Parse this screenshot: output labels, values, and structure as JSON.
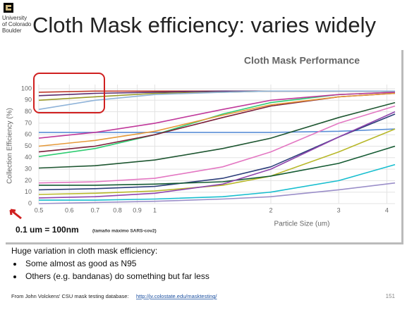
{
  "title": "Cloth Mask efficiency: varies widely",
  "logo": {
    "lines": [
      "University",
      "of Colorado",
      "Boulder"
    ]
  },
  "annotation": {
    "main": "0.1 um = 100nm",
    "note": "(tamaño máximo SARS-cov2)"
  },
  "body": {
    "heading": "Huge variation in cloth mask efficiency:",
    "bullets": [
      "Some almost as good as N95",
      "Others (e.g. bandanas) do something but far less"
    ]
  },
  "footer": {
    "text": "From John Volckens' CSU mask testing database:",
    "link": "http://jv.colostate.edu/masktesting/",
    "page": "151"
  },
  "chart_data": {
    "type": "line",
    "title": "Cloth Mask Performance",
    "x_label": "Particle Size (um)",
    "y_label": "Collection Efficiency (%)",
    "x_scale": "log",
    "grid": true,
    "xlim": [
      0.5,
      4.2
    ],
    "ylim": [
      0,
      100
    ],
    "xticks": [
      0.5,
      0.6,
      0.7,
      0.8,
      0.9,
      1,
      2,
      3,
      4
    ],
    "yticks": [
      0,
      10,
      20,
      30,
      40,
      50,
      60,
      70,
      80,
      90,
      100
    ],
    "x": [
      0.5,
      0.7,
      1,
      1.5,
      2,
      3,
      4.2
    ],
    "series": [
      {
        "color": "#c0392b",
        "values": [
          97,
          98,
          98,
          98,
          98,
          98,
          98
        ]
      },
      {
        "color": "#5b2c6f",
        "values": [
          94,
          96,
          97,
          98,
          98,
          98,
          98
        ]
      },
      {
        "color": "#9a9a2a",
        "values": [
          90,
          93,
          96,
          97,
          98,
          98,
          98
        ]
      },
      {
        "color": "#8fb3d9",
        "values": [
          82,
          90,
          95,
          97,
          98,
          98,
          98
        ]
      },
      {
        "color": "#5a8fd6",
        "values": [
          62,
          62,
          62,
          62,
          62,
          63,
          65
        ]
      },
      {
        "color": "#2ecc71",
        "values": [
          41,
          48,
          60,
          78,
          88,
          95,
          97
        ]
      },
      {
        "color": "#c0399b",
        "values": [
          57,
          62,
          70,
          82,
          90,
          95,
          97
        ]
      },
      {
        "color": "#7b1f3a",
        "values": [
          45,
          50,
          60,
          75,
          85,
          93,
          96
        ]
      },
      {
        "color": "#e69a3a",
        "values": [
          50,
          55,
          63,
          77,
          86,
          93,
          96
        ]
      },
      {
        "color": "#1e5631",
        "values": [
          31,
          33,
          38,
          48,
          57,
          75,
          88
        ]
      },
      {
        "color": "#e377c2",
        "values": [
          18,
          19,
          22,
          32,
          45,
          70,
          85
        ]
      },
      {
        "color": "#2c3e7a",
        "values": [
          12,
          13,
          15,
          22,
          32,
          58,
          78
        ]
      },
      {
        "color": "#b8b82a",
        "values": [
          8,
          9,
          11,
          16,
          24,
          45,
          65
        ]
      },
      {
        "color": "#17becf",
        "values": [
          3,
          3,
          4,
          6,
          10,
          20,
          34
        ]
      },
      {
        "color": "#9b8fc9",
        "values": [
          0,
          1,
          2,
          4,
          6,
          12,
          18
        ]
      },
      {
        "color": "#145a32",
        "values": [
          16,
          16,
          17,
          19,
          24,
          35,
          50
        ]
      },
      {
        "color": "#8e44ad",
        "values": [
          5,
          6,
          9,
          17,
          30,
          58,
          80
        ]
      }
    ]
  }
}
